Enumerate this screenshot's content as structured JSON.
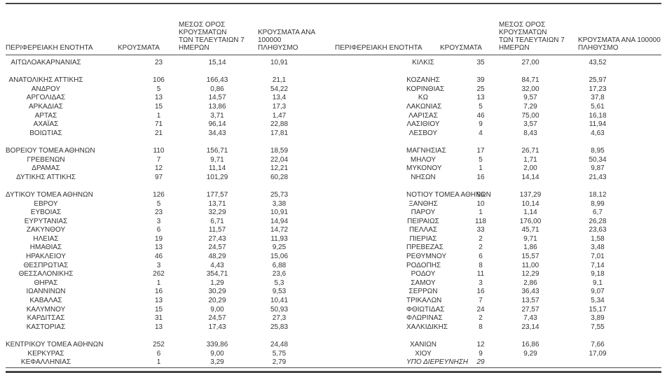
{
  "chart_data": {
    "type": "table",
    "layout": "two side-by-side table halves sharing the same four column headers; values use comma decimal separator",
    "column_headers": {
      "region": "ΠΕΡΙΦΕΡΕΙΑΚΗ ΕΝΟΤΗΤΑ",
      "cases": "ΚΡΟΥΣΜΑΤΑ",
      "avg7": "ΜΕΣΟΣ ΟΡΟΣ ΚΡΟΥΣΜΑΤΩΝ\nΤΩΝ ΤΕΛΕΥΤΑΙΩΝ 7\nΗΜΕΡΩΝ",
      "per100k": "ΚΡΟΥΣΜΑΤΑ ΑΝΑ 100000\nΠΛΗΘΥΣΜΟ"
    },
    "rows": [
      {
        "l": [
          "ΑΙΤΩΛΟΑΚΑΡΝΑΝΙΑΣ",
          "23",
          "15,14",
          "10,91"
        ],
        "r": [
          "ΚΙΛΚΙΣ",
          "35",
          "27,00",
          "43,52"
        ]
      },
      {
        "l": null,
        "r": null
      },
      {
        "l": [
          "ΑΝΑΤΟΛΙΚΗΣ ΑΤΤΙΚΗΣ",
          "106",
          "166,43",
          "21,1"
        ],
        "r": [
          "ΚΟΖΑΝΗΣ",
          "39",
          "84,71",
          "25,97"
        ]
      },
      {
        "l": [
          "ΑΝΔΡΟΥ",
          "5",
          "0,86",
          "54,22"
        ],
        "r": [
          "ΚΟΡΙΝΘΙΑΣ",
          "25",
          "32,00",
          "17,23"
        ]
      },
      {
        "l": [
          "ΑΡΓΟΛΙΔΑΣ",
          "13",
          "14,57",
          "13,4"
        ],
        "r": [
          "ΚΩ",
          "13",
          "9,57",
          "37,8"
        ]
      },
      {
        "l": [
          "ΑΡΚΑΔΙΑΣ",
          "15",
          "13,86",
          "17,3"
        ],
        "r": [
          "ΛΑΚΩΝΙΑΣ",
          "5",
          "7,29",
          "5,61"
        ]
      },
      {
        "l": [
          "ΑΡΤΑΣ",
          "1",
          "3,71",
          "1,47"
        ],
        "r": [
          "ΛΑΡΙΣΑΣ",
          "46",
          "75,00",
          "16,18"
        ]
      },
      {
        "l": [
          "ΑΧΑΪΑΣ",
          "71",
          "96,14",
          "22,88"
        ],
        "r": [
          "ΛΑΣΙΘΙΟΥ",
          "9",
          "3,57",
          "11,94"
        ]
      },
      {
        "l": [
          "ΒΟΙΩΤΙΑΣ",
          "21",
          "34,43",
          "17,81"
        ],
        "r": [
          "ΛΕΣΒΟΥ",
          "4",
          "8,43",
          "4,63"
        ]
      },
      {
        "l": null,
        "r": null
      },
      {
        "l": [
          "ΒΟΡΕΙΟΥ ΤΟΜΕΑ ΑΘΗΝΩΝ",
          "110",
          "156,71",
          "18,59"
        ],
        "r": [
          "ΜΑΓΝΗΣΙΑΣ",
          "17",
          "26,71",
          "8,95"
        ]
      },
      {
        "l": [
          "ΓΡΕΒΕΝΩΝ",
          "7",
          "9,71",
          "22,04"
        ],
        "r": [
          "ΜΗΛΟΥ",
          "5",
          "1,71",
          "50,34"
        ]
      },
      {
        "l": [
          "ΔΡΑΜΑΣ",
          "12",
          "11,14",
          "12,21"
        ],
        "r": [
          "ΜΥΚΟΝΟΥ",
          "1",
          "2,00",
          "9,87"
        ]
      },
      {
        "l": [
          "ΔΥΤΙΚΗΣ ΑΤΤΙΚΗΣ",
          "97",
          "101,29",
          "60,28"
        ],
        "r": [
          "ΝΗΣΩΝ",
          "16",
          "14,14",
          "21,43"
        ]
      },
      {
        "l": null,
        "r": null
      },
      {
        "l": [
          "ΔΥΤΙΚΟΥ ΤΟΜΕΑ ΑΘΗΝΩΝ",
          "126",
          "177,57",
          "25,73"
        ],
        "r": [
          "ΝΟΤΙΟΥ ΤΟΜΕΑ ΑΘΗΝΩΝ",
          "96",
          "137,29",
          "18,12"
        ]
      },
      {
        "l": [
          "ΕΒΡΟΥ",
          "5",
          "13,71",
          "3,38"
        ],
        "r": [
          "ΞΑΝΘΗΣ",
          "10",
          "10,14",
          "8,99"
        ]
      },
      {
        "l": [
          "ΕΥΒΟΙΑΣ",
          "23",
          "32,29",
          "10,91"
        ],
        "r": [
          "ΠΑΡΟΥ",
          "1",
          "1,14",
          "6,7"
        ]
      },
      {
        "l": [
          "ΕΥΡΥΤΑΝΙΑΣ",
          "3",
          "6,71",
          "14,94"
        ],
        "r": [
          "ΠΕΙΡΑΙΩΣ",
          "118",
          "176,00",
          "26,28"
        ]
      },
      {
        "l": [
          "ΖΑΚΥΝΘΟΥ",
          "6",
          "11,57",
          "14,72"
        ],
        "r": [
          "ΠΕΛΛΑΣ",
          "33",
          "45,71",
          "23,63"
        ]
      },
      {
        "l": [
          "ΗΛΕΙΑΣ",
          "19",
          "27,43",
          "11,93"
        ],
        "r": [
          "ΠΙΕΡΙΑΣ",
          "2",
          "9,71",
          "1,58"
        ]
      },
      {
        "l": [
          "ΗΜΑΘΙΑΣ",
          "13",
          "24,57",
          "9,25"
        ],
        "r": [
          "ΠΡΕΒΕΖΑΣ",
          "2",
          "1,86",
          "3,48"
        ]
      },
      {
        "l": [
          "ΗΡΑΚΛΕΙΟΥ",
          "46",
          "48,29",
          "15,06"
        ],
        "r": [
          "ΡΕΘΥΜΝΟΥ",
          "6",
          "15,57",
          "7,01"
        ]
      },
      {
        "l": [
          "ΘΕΣΠΡΩΤΙΑΣ",
          "3",
          "4,43",
          "6,88"
        ],
        "r": [
          "ΡΟΔΟΠΗΣ",
          "8",
          "11,00",
          "7,14"
        ]
      },
      {
        "l": [
          "ΘΕΣΣΑΛΟΝΙΚΗΣ",
          "262",
          "354,71",
          "23,6"
        ],
        "r": [
          "ΡΟΔΟΥ",
          "11",
          "12,29",
          "9,18"
        ]
      },
      {
        "l": [
          "ΘΗΡΑΣ",
          "1",
          "1,29",
          "5,3"
        ],
        "r": [
          "ΣΑΜΟΥ",
          "3",
          "2,86",
          "9,1"
        ]
      },
      {
        "l": [
          "ΙΩΑΝΝΙΝΩΝ",
          "16",
          "30,29",
          "9,53"
        ],
        "r": [
          "ΣΕΡΡΩΝ",
          "16",
          "36,43",
          "9,07"
        ]
      },
      {
        "l": [
          "ΚΑΒΑΛΑΣ",
          "13",
          "20,29",
          "10,41"
        ],
        "r": [
          "ΤΡΙΚΑΛΩΝ",
          "7",
          "13,57",
          "5,34"
        ]
      },
      {
        "l": [
          "ΚΑΛΥΜΝΟΥ",
          "15",
          "9,00",
          "50,93"
        ],
        "r": [
          "ΦΘΙΩΤΙΔΑΣ",
          "24",
          "27,57",
          "15,17"
        ]
      },
      {
        "l": [
          "ΚΑΡΔΙΤΣΑΣ",
          "31",
          "24,57",
          "27,3"
        ],
        "r": [
          "ΦΛΩΡΙΝΑΣ",
          "2",
          "7,43",
          "3,89"
        ]
      },
      {
        "l": [
          "ΚΑΣΤΟΡΙΑΣ",
          "13",
          "17,43",
          "25,83"
        ],
        "r": [
          "ΧΑΛΚΙΔΙΚΗΣ",
          "8",
          "23,14",
          "7,55"
        ]
      },
      {
        "l": null,
        "r": null
      },
      {
        "l": [
          "ΚΕΝΤΡΙΚΟΥ ΤΟΜΕΑ ΑΘΗΝΩΝ",
          "252",
          "339,86",
          "24,48"
        ],
        "r": [
          "ΧΑΝΙΩΝ",
          "12",
          "16,86",
          "7,66"
        ]
      },
      {
        "l": [
          "ΚΕΡΚΥΡΑΣ",
          "6",
          "9,00",
          "5,75"
        ],
        "r": [
          "ΧΙΟΥ",
          "9",
          "9,29",
          "17,09"
        ]
      },
      {
        "l": [
          "ΚΕΦΑΛΛΗΝΙΑΣ",
          "1",
          "3,29",
          "2,79"
        ],
        "r": [
          "ΥΠΟ ΔΙΕΡΕΥΝΗΣΗ",
          "29",
          "",
          ""
        ],
        "r_italic": true
      }
    ]
  },
  "styles": {
    "text_color": "#333333",
    "rule_color": "#4c4c4c"
  }
}
